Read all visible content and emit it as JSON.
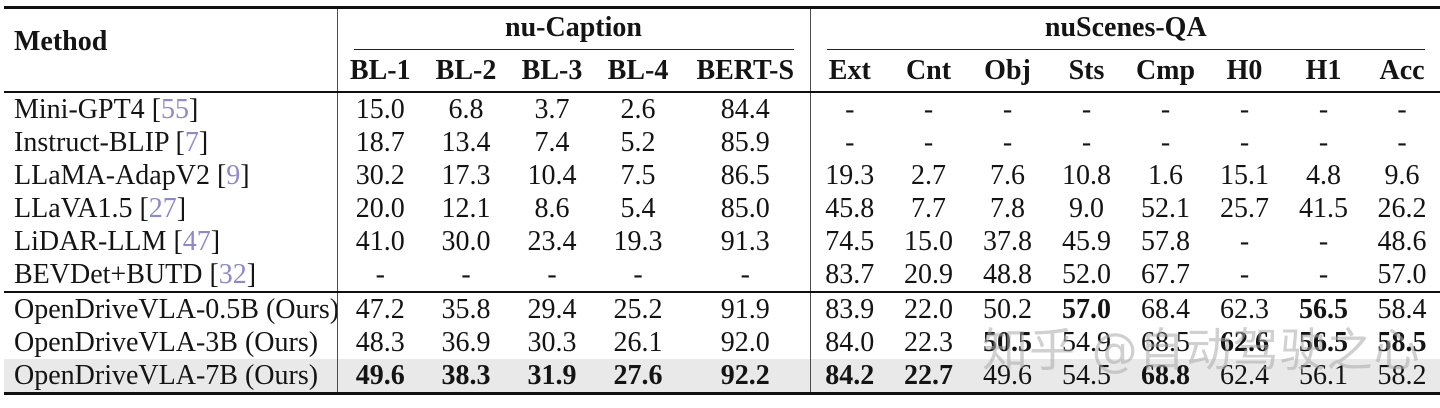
{
  "table": {
    "method_header": "Method",
    "groups": [
      {
        "label": "nu-Caption",
        "columns": [
          "BL-1",
          "BL-2",
          "BL-3",
          "BL-4",
          "BERT-S"
        ]
      },
      {
        "label": "nuScenes-QA",
        "columns": [
          "Ext",
          "Cnt",
          "Obj",
          "Sts",
          "Cmp",
          "H0",
          "H1",
          "Acc"
        ]
      }
    ],
    "rows": [
      {
        "method": "Mini-GPT4",
        "cite": "55",
        "values": [
          "15.0",
          "6.8",
          "3.7",
          "2.6",
          "84.4",
          "-",
          "-",
          "-",
          "-",
          "-",
          "-",
          "-",
          "-"
        ],
        "bold": []
      },
      {
        "method": "Instruct-BLIP",
        "cite": "7",
        "values": [
          "18.7",
          "13.4",
          "7.4",
          "5.2",
          "85.9",
          "-",
          "-",
          "-",
          "-",
          "-",
          "-",
          "-",
          "-"
        ],
        "bold": []
      },
      {
        "method": "LLaMA-AdapV2",
        "cite": "9",
        "values": [
          "30.2",
          "17.3",
          "10.4",
          "7.5",
          "86.5",
          "19.3",
          "2.7",
          "7.6",
          "10.8",
          "1.6",
          "15.1",
          "4.8",
          "9.6"
        ],
        "bold": []
      },
      {
        "method": "LLaVA1.5",
        "cite": "27",
        "values": [
          "20.0",
          "12.1",
          "8.6",
          "5.4",
          "85.0",
          "45.8",
          "7.7",
          "7.8",
          "9.0",
          "52.1",
          "25.7",
          "41.5",
          "26.2"
        ],
        "bold": []
      },
      {
        "method": "LiDAR-LLM",
        "cite": "47",
        "values": [
          "41.0",
          "30.0",
          "23.4",
          "19.3",
          "91.3",
          "74.5",
          "15.0",
          "37.8",
          "45.9",
          "57.8",
          "-",
          "-",
          "48.6"
        ],
        "bold": []
      },
      {
        "method": "BEVDet+BUTD",
        "cite": "32",
        "values": [
          "-",
          "-",
          "-",
          "-",
          "-",
          "83.7",
          "20.9",
          "48.8",
          "52.0",
          "67.7",
          "-",
          "-",
          "57.0"
        ],
        "bold": []
      },
      {
        "method": "OpenDriveVLA-0.5B (Ours)",
        "cite": null,
        "values": [
          "47.2",
          "35.8",
          "29.4",
          "25.2",
          "91.9",
          "83.9",
          "22.0",
          "50.2",
          "57.0",
          "68.4",
          "62.3",
          "56.5",
          "58.4"
        ],
        "bold": [
          8,
          11
        ]
      },
      {
        "method": "OpenDriveVLA-3B (Ours)",
        "cite": null,
        "values": [
          "48.3",
          "36.9",
          "30.3",
          "26.1",
          "92.0",
          "84.0",
          "22.3",
          "50.5",
          "54.9",
          "68.5",
          "62.6",
          "56.5",
          "58.5"
        ],
        "bold": [
          7,
          10,
          11,
          12
        ]
      },
      {
        "method": "OpenDriveVLA-7B (Ours)",
        "cite": null,
        "values": [
          "49.6",
          "38.3",
          "31.9",
          "27.6",
          "92.2",
          "84.2",
          "22.7",
          "49.6",
          "54.5",
          "68.8",
          "62.4",
          "56.1",
          "58.2"
        ],
        "bold": [
          0,
          1,
          2,
          3,
          4,
          5,
          6,
          9
        ]
      }
    ],
    "section_start_row": 6,
    "highlight_row": 8
  },
  "watermark": {
    "text": "知乎 @自动驾驶之心"
  },
  "colors": {
    "cite": "#8e88cc",
    "highlight": "#e9e9e9",
    "watermark": "#aaaaaa"
  }
}
